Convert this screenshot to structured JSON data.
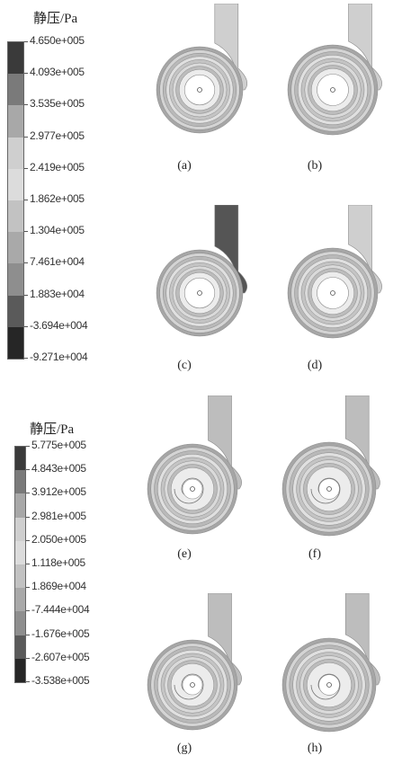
{
  "legend_top": {
    "title": "静压/Pa",
    "ticks": [
      "4.650e+005",
      "4.093e+005",
      "3.535e+005",
      "2.977e+005",
      "2.419e+005",
      "1.862e+005",
      "1.304e+005",
      "7.461e+004",
      "1.883e+004",
      "-3.694e+004",
      "-9.271e+004"
    ]
  },
  "legend_bottom": {
    "title": "静压/Pa",
    "ticks": [
      "5.775e+005",
      "4.843e+005",
      "3.912e+005",
      "2.981e+005",
      "2.050e+005",
      "1.118e+005",
      "1.869e+004",
      "-7.444e+004",
      "-1.676e+005",
      "-2.607e+005",
      "-3.538e+005"
    ]
  },
  "panels": [
    {
      "label": "(a)"
    },
    {
      "label": "(b)"
    },
    {
      "label": "(c)"
    },
    {
      "label": "(d)"
    },
    {
      "label": "(e)"
    },
    {
      "label": "(f)"
    },
    {
      "label": "(g)"
    },
    {
      "label": "(h)"
    }
  ]
}
